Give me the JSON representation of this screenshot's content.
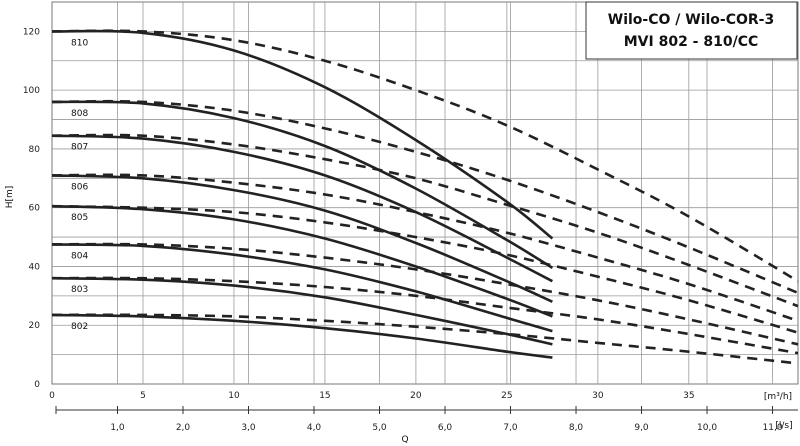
{
  "chart_data": {
    "type": "line",
    "title_lines": [
      "Wilo-CO / Wilo-COR-3",
      "MVI 802 - 810/CC"
    ],
    "ylabel": "H[m]",
    "xlabel": "Q",
    "x_unit_top": "[m³/h]",
    "x_unit_bottom": "[l/s]",
    "xlim": [
      0,
      41
    ],
    "ylim": [
      0,
      130
    ],
    "grid": true,
    "y_ticks": [
      0,
      20,
      40,
      60,
      80,
      100,
      120
    ],
    "y_tick_labels": [
      "0",
      "20",
      "40",
      "60",
      "80",
      "100",
      "120"
    ],
    "x_ticks_top": [
      0,
      5,
      10,
      15,
      20,
      25,
      30,
      35
    ],
    "x_tick_labels_top": [
      "0",
      "5",
      "10",
      "15",
      "20",
      "25",
      "30",
      "35"
    ],
    "x_ticks_bottom": [
      1.0,
      2.0,
      3.0,
      4.0,
      5.0,
      6.0,
      7.0,
      8.0,
      9.0,
      10.0,
      11.0
    ],
    "x_tick_labels_bottom": [
      "1,0",
      "2,0",
      "3,0",
      "4,0",
      "5,0",
      "6,0",
      "7,0",
      "8,0",
      "9,0",
      "10,0",
      "11,0"
    ],
    "solid_style": "single pump curve",
    "dashed_style": "extended curve",
    "series": [
      {
        "name": "810",
        "solid": [
          [
            0,
            120
          ],
          [
            5,
            119.5
          ],
          [
            10,
            113.5
          ],
          [
            15,
            101
          ],
          [
            20,
            83
          ],
          [
            25,
            62
          ],
          [
            27.5,
            49.5
          ]
        ],
        "dashed": [
          [
            0,
            120
          ],
          [
            5,
            120
          ],
          [
            10,
            117
          ],
          [
            15,
            110
          ],
          [
            20,
            100
          ],
          [
            25,
            88
          ],
          [
            30,
            73
          ],
          [
            35,
            57
          ],
          [
            41,
            35
          ]
        ]
      },
      {
        "name": "808",
        "solid": [
          [
            0,
            96
          ],
          [
            5,
            95.5
          ],
          [
            10,
            90.5
          ],
          [
            15,
            81
          ],
          [
            20,
            66.5
          ],
          [
            25,
            49
          ],
          [
            27.5,
            39.5
          ]
        ],
        "dashed": [
          [
            0,
            96
          ],
          [
            5,
            96
          ],
          [
            10,
            93
          ],
          [
            15,
            87
          ],
          [
            20,
            79
          ],
          [
            25,
            69.5
          ],
          [
            30,
            58.5
          ],
          [
            35,
            46.5
          ],
          [
            41,
            31
          ]
        ]
      },
      {
        "name": "807",
        "solid": [
          [
            0,
            84.5
          ],
          [
            5,
            83.5
          ],
          [
            10,
            79
          ],
          [
            15,
            71
          ],
          [
            20,
            58.5
          ],
          [
            25,
            43
          ],
          [
            27.5,
            35
          ]
        ],
        "dashed": [
          [
            0,
            84.5
          ],
          [
            5,
            84.5
          ],
          [
            10,
            81.5
          ],
          [
            15,
            76.5
          ],
          [
            20,
            70
          ],
          [
            25,
            61
          ],
          [
            30,
            51.5
          ],
          [
            35,
            40.5
          ],
          [
            41,
            26.5
          ]
        ]
      },
      {
        "name": "806",
        "solid": [
          [
            0,
            71
          ],
          [
            5,
            70
          ],
          [
            10,
            66
          ],
          [
            15,
            59
          ],
          [
            20,
            48
          ],
          [
            25,
            35
          ],
          [
            27.5,
            28
          ]
        ],
        "dashed": [
          [
            0,
            71
          ],
          [
            5,
            71
          ],
          [
            10,
            68.5
          ],
          [
            15,
            64.5
          ],
          [
            20,
            58.5
          ],
          [
            25,
            51.5
          ],
          [
            30,
            43
          ],
          [
            35,
            34
          ],
          [
            41,
            21.5
          ]
        ]
      },
      {
        "name": "805",
        "solid": [
          [
            0,
            60.5
          ],
          [
            5,
            59.5
          ],
          [
            10,
            56
          ],
          [
            15,
            49.5
          ],
          [
            20,
            40
          ],
          [
            25,
            29
          ],
          [
            27.5,
            23
          ]
        ],
        "dashed": [
          [
            0,
            60.5
          ],
          [
            5,
            60
          ],
          [
            10,
            58.5
          ],
          [
            15,
            55
          ],
          [
            20,
            50
          ],
          [
            25,
            44
          ],
          [
            30,
            36.5
          ],
          [
            35,
            28.5
          ],
          [
            41,
            17.5
          ]
        ]
      },
      {
        "name": "804",
        "solid": [
          [
            0,
            47.5
          ],
          [
            5,
            47
          ],
          [
            10,
            44
          ],
          [
            15,
            39
          ],
          [
            20,
            31.5
          ],
          [
            25,
            22.5
          ],
          [
            27.5,
            18
          ]
        ],
        "dashed": [
          [
            0,
            47.5
          ],
          [
            5,
            47.5
          ],
          [
            10,
            46
          ],
          [
            15,
            43
          ],
          [
            20,
            39
          ],
          [
            25,
            34
          ],
          [
            30,
            28.5
          ],
          [
            35,
            22
          ],
          [
            41,
            13.5
          ]
        ]
      },
      {
        "name": "803",
        "solid": [
          [
            0,
            36
          ],
          [
            5,
            35.5
          ],
          [
            10,
            33.5
          ],
          [
            15,
            29.5
          ],
          [
            20,
            23.5
          ],
          [
            25,
            17
          ],
          [
            27.5,
            13.5
          ]
        ],
        "dashed": [
          [
            0,
            36
          ],
          [
            5,
            36
          ],
          [
            10,
            35
          ],
          [
            15,
            33
          ],
          [
            20,
            30
          ],
          [
            25,
            26
          ],
          [
            30,
            22
          ],
          [
            35,
            17
          ],
          [
            41,
            10.5
          ]
        ]
      },
      {
        "name": "802",
        "solid": [
          [
            0,
            23.5
          ],
          [
            5,
            23
          ],
          [
            10,
            21.5
          ],
          [
            15,
            19
          ],
          [
            20,
            15.5
          ],
          [
            25,
            11
          ],
          [
            27.5,
            9
          ]
        ],
        "dashed": [
          [
            0,
            23.5
          ],
          [
            5,
            23.5
          ],
          [
            10,
            23
          ],
          [
            15,
            21.5
          ],
          [
            20,
            19.5
          ],
          [
            25,
            17
          ],
          [
            30,
            14
          ],
          [
            35,
            11
          ],
          [
            41,
            7
          ]
        ]
      }
    ]
  }
}
